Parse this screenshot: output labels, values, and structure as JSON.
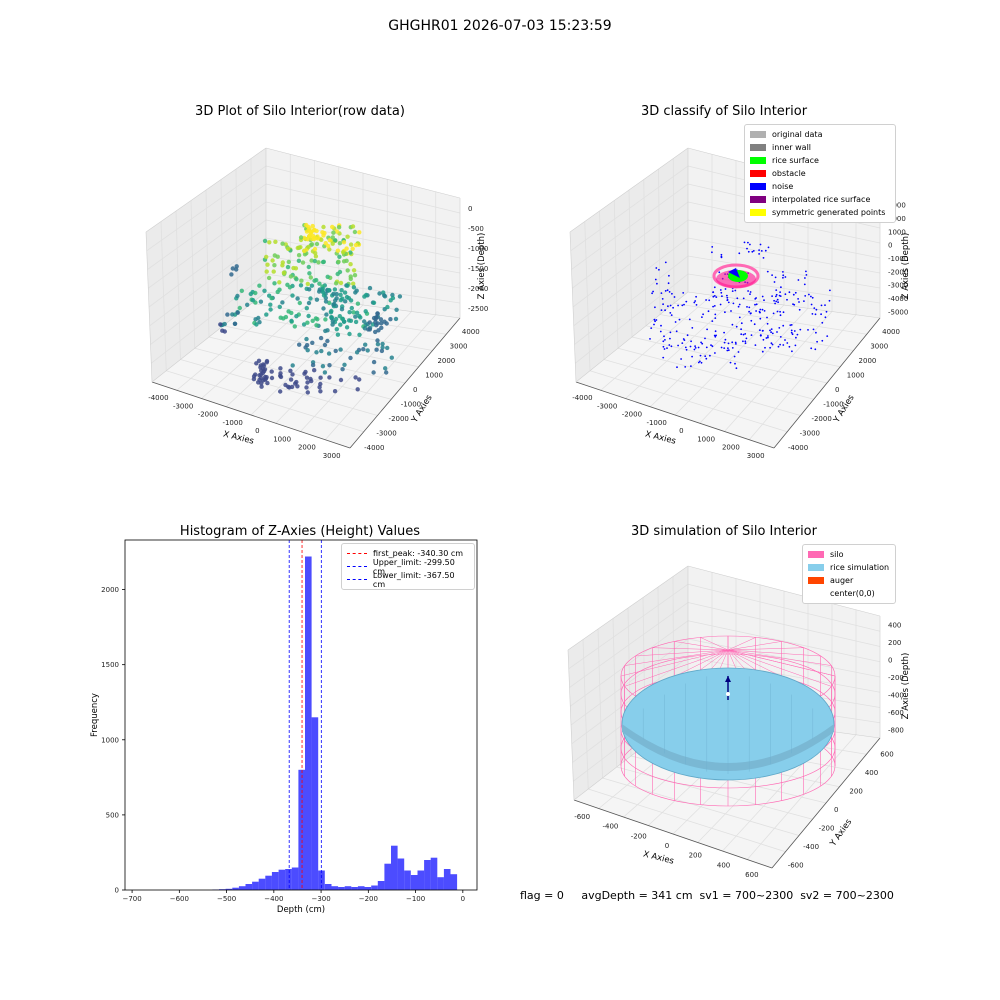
{
  "suptitle": "GHGHR01 2026-07-03 15:23:59",
  "plots": {
    "raw": {
      "title": "3D Plot of Silo Interior(row data)",
      "xlabel": "X Axies",
      "ylabel": "Y Axies",
      "zlabel": "Z Axies (Depth)",
      "xticks": [
        "-4000",
        "-3000",
        "-2000",
        "-1000",
        "0",
        "1000",
        "2000",
        "3000"
      ],
      "yticks": [
        "-4000",
        "-3000",
        "-2000",
        "-1000",
        "0",
        "1000",
        "2000",
        "3000",
        "4000"
      ],
      "zticks": [
        "-2500",
        "-2000",
        "-1500",
        "-1000",
        "-500",
        "0"
      ]
    },
    "classify": {
      "title": "3D classify of Silo Interior",
      "xlabel": "X Axies",
      "ylabel": "Y Axies",
      "zlabel": "Z Axies (Depth)",
      "xticks": [
        "-4000",
        "-3000",
        "-2000",
        "-1000",
        "0",
        "1000",
        "2000",
        "3000"
      ],
      "yticks": [
        "-4000",
        "-3000",
        "-2000",
        "-1000",
        "0",
        "1000",
        "2000",
        "3000",
        "4000"
      ],
      "zticks": [
        "-5000",
        "-4000",
        "-3000",
        "-2000",
        "-1000",
        "0",
        "1000",
        "2000",
        "3000"
      ],
      "legend": [
        {
          "label": "original data",
          "color": "#b0b0b0"
        },
        {
          "label": "inner wall",
          "color": "#808080"
        },
        {
          "label": "rice surface",
          "color": "#00ff00"
        },
        {
          "label": "obstacle",
          "color": "#ff0000"
        },
        {
          "label": "noise",
          "color": "#0000ff"
        },
        {
          "label": "interpolated rice surface",
          "color": "#800080"
        },
        {
          "label": "symmetric generated points",
          "color": "#ffff00"
        }
      ]
    },
    "simulation": {
      "title": "3D simulation of Silo Interior",
      "xlabel": "X Axies",
      "ylabel": "Y Axies",
      "zlabel": "Z Axies (Depth)",
      "xticks": [
        "-600",
        "-400",
        "-200",
        "0",
        "200",
        "400",
        "600"
      ],
      "yticks": [
        "-600",
        "-400",
        "-200",
        "0",
        "200",
        "400",
        "600"
      ],
      "zticks": [
        "-800",
        "-600",
        "-400",
        "-200",
        "0",
        "200",
        "400"
      ],
      "legend": [
        {
          "label": "silo",
          "color": "#ff69b4"
        },
        {
          "label": "rice simulation",
          "color": "#87ceeb"
        },
        {
          "label": "auger",
          "color": "#ff4500"
        },
        {
          "label": "center(0,0)",
          "color": ""
        }
      ]
    }
  },
  "chart_data": [
    {
      "type": "bar",
      "title": "Histogram of Z-Axies (Height) Values",
      "xlabel": "Depth (cm)",
      "ylabel": "Frequency",
      "xlim": [
        -715,
        30
      ],
      "ylim": [
        0,
        2330
      ],
      "xticks": [
        -700,
        -600,
        -500,
        -400,
        -300,
        -200,
        -100,
        0
      ],
      "yticks": [
        0,
        500,
        1000,
        1500,
        2000
      ],
      "bar_color": "#0000ff",
      "bin_edges": [
        -530,
        -516,
        -502,
        -488,
        -474,
        -460,
        -446,
        -432,
        -418,
        -404,
        -390,
        -376,
        -362,
        -348,
        -334,
        -320,
        -306,
        -292,
        -278,
        -264,
        -250,
        -236,
        -222,
        -208,
        -194,
        -180,
        -166,
        -152,
        -138,
        -124,
        -110,
        -96,
        -82,
        -68,
        -54,
        -40,
        -26,
        -12,
        0
      ],
      "counts": [
        3,
        5,
        8,
        15,
        25,
        40,
        55,
        75,
        95,
        120,
        135,
        140,
        150,
        800,
        2220,
        1150,
        130,
        40,
        25,
        20,
        25,
        20,
        25,
        20,
        30,
        60,
        175,
        295,
        210,
        130,
        100,
        130,
        200,
        215,
        85,
        140,
        105,
        0
      ],
      "lines": [
        {
          "label": "first_peak: -340.30 cm",
          "x": -340.3,
          "color": "#ff0000"
        },
        {
          "label": "Upper_limit: -299.50 cm",
          "x": -299.5,
          "color": "#0000ff"
        },
        {
          "label": "Lower_limit: -367.50 cm",
          "x": -367.5,
          "color": "#0000ff"
        }
      ]
    }
  ],
  "footer": "flag = 0     avgDepth = 341 cm  sv1 = 700~2300  sv2 = 700~2300"
}
